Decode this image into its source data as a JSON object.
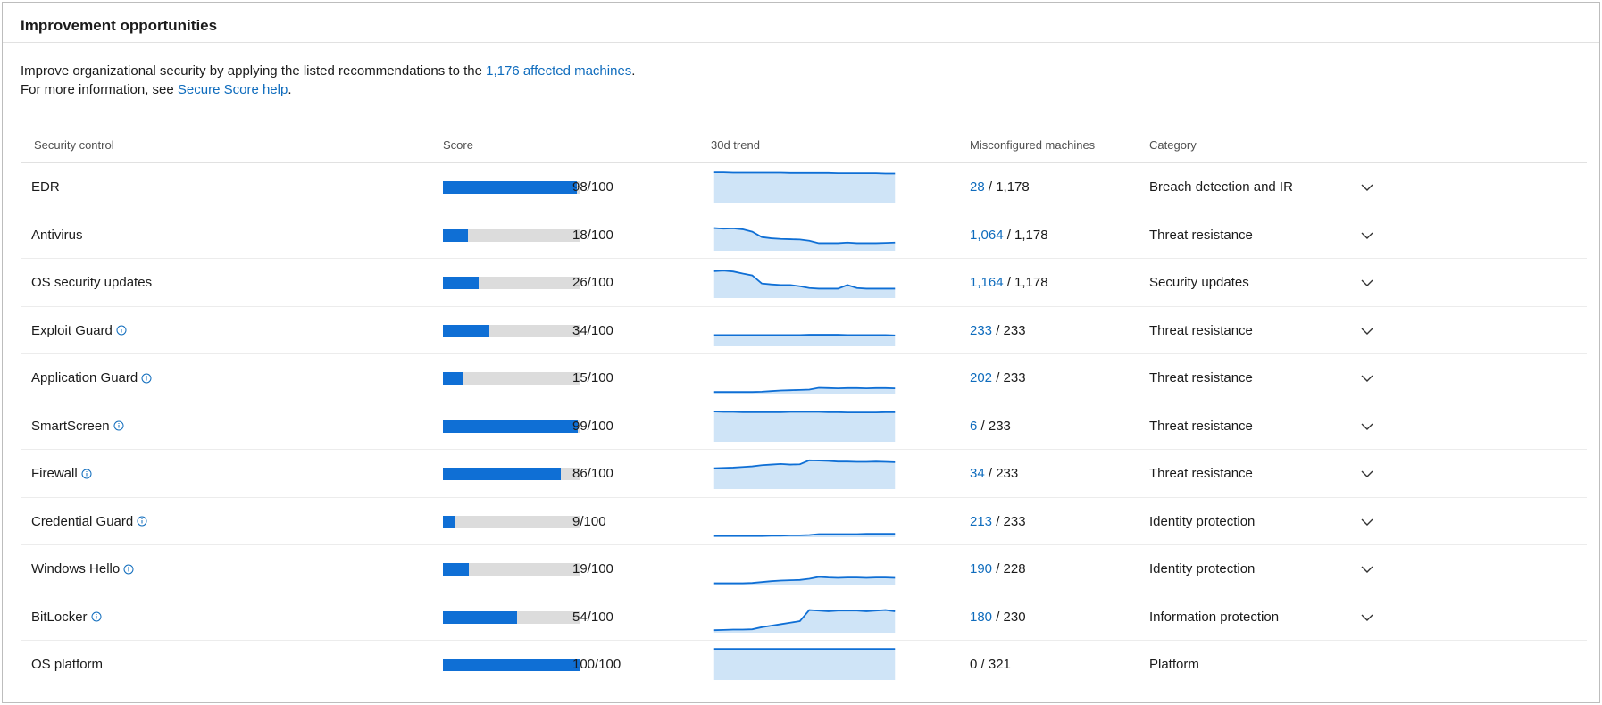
{
  "header": {
    "title": "Improvement opportunities"
  },
  "intro": {
    "line1_prefix": "Improve organizational security by applying the listed recommendations to the ",
    "affected_link": "1,176 affected machines",
    "line1_suffix": ".",
    "line2_prefix": "For more information, see ",
    "help_link": "Secure Score help",
    "line2_suffix": "."
  },
  "columns": {
    "control": "Security control",
    "score": "Score",
    "trend": "30d trend",
    "misconfigured": "Misconfigured machines",
    "category": "Category"
  },
  "colors": {
    "accent": "#0f6fd5",
    "link": "#0f6cbd",
    "trend_fill": "#cfe4f7",
    "bar_track": "#dcdcdc"
  },
  "rows": [
    {
      "name": "EDR",
      "info": false,
      "score": 98,
      "score_label": "98/100",
      "mis_link": "28",
      "mis_total": " / 1,178",
      "mis_is_link": true,
      "category": "Breach detection and IR",
      "expandable": true,
      "trend": [
        0.97,
        0.97,
        0.96,
        0.96,
        0.96,
        0.96,
        0.96,
        0.96,
        0.95,
        0.95,
        0.95,
        0.95,
        0.95,
        0.94,
        0.94,
        0.94,
        0.94,
        0.94,
        0.93,
        0.93
      ]
    },
    {
      "name": "Antivirus",
      "info": false,
      "score": 18,
      "score_label": "18/100",
      "mis_link": "1,064",
      "mis_total": " / 1,178",
      "mis_is_link": true,
      "category": "Threat resistance",
      "expandable": true,
      "trend": [
        0.72,
        0.7,
        0.71,
        0.68,
        0.6,
        0.42,
        0.38,
        0.36,
        0.35,
        0.34,
        0.3,
        0.22,
        0.22,
        0.22,
        0.24,
        0.22,
        0.22,
        0.22,
        0.23,
        0.24
      ]
    },
    {
      "name": "OS security updates",
      "info": false,
      "score": 26,
      "score_label": "26/100",
      "mis_link": "1,164",
      "mis_total": " / 1,178",
      "mis_is_link": true,
      "category": "Security updates",
      "expandable": true,
      "trend": [
        0.86,
        0.88,
        0.85,
        0.78,
        0.72,
        0.45,
        0.42,
        0.4,
        0.4,
        0.36,
        0.3,
        0.28,
        0.28,
        0.28,
        0.4,
        0.3,
        0.28,
        0.28,
        0.28,
        0.28
      ]
    },
    {
      "name": "Exploit Guard",
      "info": true,
      "score": 34,
      "score_label": "34/100",
      "mis_link": "233",
      "mis_total": " / 233",
      "mis_is_link": true,
      "category": "Threat resistance",
      "expandable": true,
      "trend": [
        0.34,
        0.34,
        0.34,
        0.34,
        0.34,
        0.34,
        0.34,
        0.34,
        0.34,
        0.34,
        0.35,
        0.35,
        0.35,
        0.35,
        0.34,
        0.34,
        0.34,
        0.34,
        0.34,
        0.33
      ]
    },
    {
      "name": "Application Guard",
      "info": true,
      "score": 15,
      "score_label": "15/100",
      "mis_link": "202",
      "mis_total": " / 233",
      "mis_is_link": true,
      "category": "Threat resistance",
      "expandable": true,
      "trend": [
        0.02,
        0.02,
        0.02,
        0.02,
        0.02,
        0.03,
        0.05,
        0.07,
        0.08,
        0.09,
        0.1,
        0.16,
        0.15,
        0.14,
        0.15,
        0.15,
        0.14,
        0.15,
        0.15,
        0.14
      ]
    },
    {
      "name": "SmartScreen",
      "info": true,
      "score": 99,
      "score_label": "99/100",
      "mis_link": "6",
      "mis_total": " / 233",
      "mis_is_link": true,
      "category": "Threat resistance",
      "expandable": true,
      "trend": [
        0.97,
        0.96,
        0.96,
        0.95,
        0.95,
        0.95,
        0.95,
        0.95,
        0.96,
        0.96,
        0.96,
        0.96,
        0.95,
        0.95,
        0.94,
        0.94,
        0.94,
        0.94,
        0.95,
        0.95
      ]
    },
    {
      "name": "Firewall",
      "info": true,
      "score": 86,
      "score_label": "86/100",
      "mis_link": "34",
      "mis_total": " / 233",
      "mis_is_link": true,
      "category": "Threat resistance",
      "expandable": true,
      "trend": [
        0.66,
        0.67,
        0.68,
        0.7,
        0.72,
        0.76,
        0.78,
        0.8,
        0.78,
        0.79,
        0.92,
        0.91,
        0.9,
        0.88,
        0.88,
        0.87,
        0.87,
        0.88,
        0.87,
        0.86
      ]
    },
    {
      "name": "Credential Guard",
      "info": true,
      "score": 9,
      "score_label": "9/100",
      "mis_link": "213",
      "mis_total": " / 233",
      "mis_is_link": true,
      "category": "Identity protection",
      "expandable": true,
      "trend": [
        0.01,
        0.01,
        0.01,
        0.01,
        0.01,
        0.01,
        0.02,
        0.02,
        0.03,
        0.03,
        0.04,
        0.07,
        0.07,
        0.07,
        0.07,
        0.07,
        0.08,
        0.08,
        0.08,
        0.08
      ]
    },
    {
      "name": "Windows Hello",
      "info": true,
      "score": 19,
      "score_label": "19/100",
      "mis_link": "190",
      "mis_total": " / 228",
      "mis_is_link": true,
      "category": "Identity protection",
      "expandable": true,
      "trend": [
        0.01,
        0.01,
        0.01,
        0.01,
        0.02,
        0.05,
        0.08,
        0.1,
        0.11,
        0.12,
        0.16,
        0.22,
        0.2,
        0.19,
        0.2,
        0.2,
        0.19,
        0.2,
        0.2,
        0.19
      ]
    },
    {
      "name": "BitLocker",
      "info": true,
      "score": 54,
      "score_label": "54/100",
      "mis_link": "180",
      "mis_total": " / 230",
      "mis_is_link": true,
      "category": "Information protection",
      "expandable": true,
      "trend": [
        0.05,
        0.06,
        0.07,
        0.07,
        0.08,
        0.15,
        0.2,
        0.25,
        0.3,
        0.35,
        0.72,
        0.7,
        0.68,
        0.7,
        0.7,
        0.7,
        0.68,
        0.7,
        0.72,
        0.68
      ]
    },
    {
      "name": "OS platform",
      "info": false,
      "score": 100,
      "score_label": "100/100",
      "mis_link": "0",
      "mis_total": " / 321",
      "mis_is_link": false,
      "category": "Platform",
      "expandable": false,
      "trend": [
        1,
        1,
        1,
        1,
        1,
        1,
        1,
        1,
        1,
        1,
        1,
        1,
        1,
        1,
        1,
        1,
        1,
        1,
        1,
        1
      ]
    }
  ]
}
